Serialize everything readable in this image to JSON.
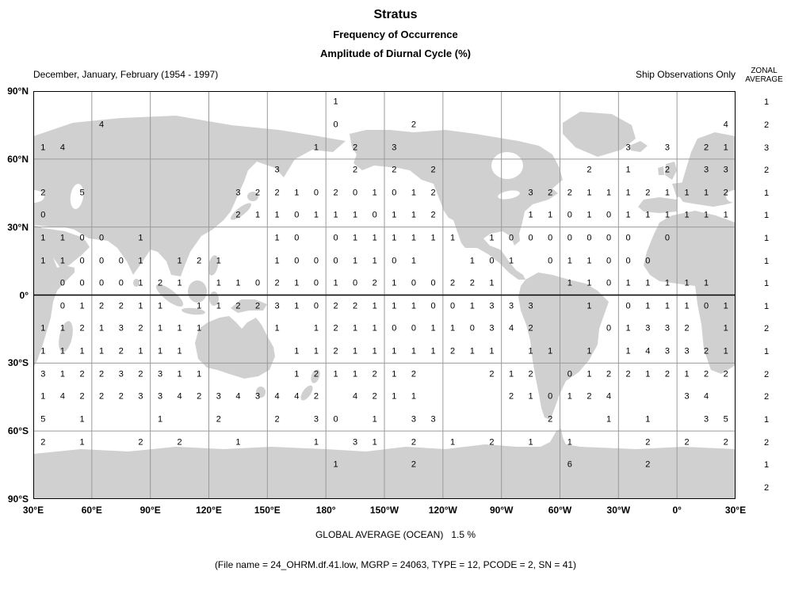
{
  "header": {
    "title": "Stratus",
    "subtitle1": "Frequency of Occurrence",
    "subtitle2": "Amplitude of Diurnal Cycle (%)"
  },
  "map_header": {
    "period": "December, January, February (1954 - 1997)",
    "source": "Ship Observations Only",
    "zonal1": "ZONAL",
    "zonal2": "AVERAGE"
  },
  "footer": {
    "global_average": "GLOBAL AVERAGE (OCEAN)   1.5 %",
    "file_info": "(File name = 24_OHRM.df.41.low, MGRP = 24063, TYPE = 12, PCODE = 2, SN = 41)"
  },
  "colors": {
    "land": "#d0d0d0",
    "grid_line": "#9a9a9a",
    "equator_line": "#000000",
    "border": "#000000",
    "text": "#000000",
    "background": "#ffffff"
  },
  "chart_data": {
    "type": "heatmap",
    "title": "Stratus — Frequency of Occurrence — Amplitude of Diurnal Cycle (%)",
    "subtitle": "December, January, February (1954 - 1997), Ship Observations Only",
    "units": "%",
    "projection": "equirectangular world map, longitudes 30E eastward around to 30E, latitudes 90N to 90S",
    "grid_resolution": "10 degree lat x 10 degree lon bands; rows start at 90N-80N, columns start at 30E-40E",
    "lat_labels": [
      "90°N",
      "60°N",
      "30°N",
      "0°",
      "30°S",
      "60°S",
      "90°S"
    ],
    "lon_labels": [
      "30°E",
      "60°E",
      "90°E",
      "120°E",
      "150°E",
      "180°",
      "150°W",
      "120°W",
      "90°W",
      "60°W",
      "30°W",
      "0°",
      "30°E"
    ],
    "grid_on": true,
    "global_average_ocean_percent": 1.5,
    "zonal_averages": [
      "1",
      "2",
      "3",
      "2",
      "1",
      "1",
      "1",
      "1",
      "1",
      "1",
      "2",
      "1",
      "2",
      "2",
      "1",
      "2",
      "1",
      "2"
    ],
    "grid_values": [
      {
        "15": "1"
      },
      {
        "3": "4",
        "15": "0",
        "19": "2",
        "35": "4"
      },
      {
        "0": "1",
        "1": "4",
        "14": "1",
        "16": "2",
        "18": "3",
        "30": "3",
        "32": "3",
        "34": "2",
        "35": "1"
      },
      {
        "12": "3",
        "16": "2",
        "18": "2",
        "20": "2",
        "28": "2",
        "30": "1",
        "32": "2",
        "34": "3",
        "35": "3"
      },
      {
        "0": "2",
        "2": "5",
        "10": "3",
        "11": "2",
        "12": "2",
        "13": "1",
        "14": "0",
        "15": "2",
        "16": "0",
        "17": "1",
        "18": "0",
        "19": "1",
        "20": "2",
        "25": "3",
        "26": "2",
        "27": "2",
        "28": "1",
        "29": "1",
        "30": "1",
        "31": "2",
        "32": "1",
        "33": "1",
        "34": "1",
        "35": "2"
      },
      {
        "0": "0",
        "10": "2",
        "11": "1",
        "12": "1",
        "13": "0",
        "14": "1",
        "15": "1",
        "16": "1",
        "17": "0",
        "18": "1",
        "19": "1",
        "20": "2",
        "25": "1",
        "26": "1",
        "27": "0",
        "28": "1",
        "29": "0",
        "30": "1",
        "31": "1",
        "32": "1",
        "33": "1",
        "34": "1",
        "35": "1"
      },
      {
        "0": "1",
        "1": "1",
        "2": "0",
        "3": "0",
        "5": "1",
        "12": "1",
        "13": "0",
        "15": "0",
        "16": "1",
        "17": "1",
        "18": "1",
        "19": "1",
        "20": "1",
        "21": "1",
        "23": "1",
        "24": "0",
        "25": "0",
        "26": "0",
        "27": "0",
        "28": "0",
        "29": "0",
        "30": "0",
        "32": "0"
      },
      {
        "0": "1",
        "1": "1",
        "2": "0",
        "3": "0",
        "4": "0",
        "5": "1",
        "7": "1",
        "8": "2",
        "9": "1",
        "12": "1",
        "13": "0",
        "14": "0",
        "15": "0",
        "16": "1",
        "17": "1",
        "18": "0",
        "19": "1",
        "22": "1",
        "23": "0",
        "24": "1",
        "26": "0",
        "27": "1",
        "28": "1",
        "29": "0",
        "30": "0",
        "31": "0"
      },
      {
        "1": "0",
        "2": "0",
        "3": "0",
        "4": "0",
        "5": "1",
        "6": "2",
        "7": "1",
        "9": "1",
        "10": "1",
        "11": "0",
        "12": "2",
        "13": "1",
        "14": "0",
        "15": "1",
        "16": "0",
        "17": "2",
        "18": "1",
        "19": "0",
        "20": "0",
        "21": "2",
        "22": "2",
        "23": "1",
        "27": "1",
        "28": "1",
        "29": "0",
        "30": "1",
        "31": "1",
        "32": "1",
        "33": "1",
        "34": "1"
      },
      {
        "1": "0",
        "2": "1",
        "3": "2",
        "4": "2",
        "5": "1",
        "6": "1",
        "8": "1",
        "9": "1",
        "10": "2",
        "11": "2",
        "12": "3",
        "13": "1",
        "14": "0",
        "15": "2",
        "16": "2",
        "17": "1",
        "18": "1",
        "19": "1",
        "20": "0",
        "21": "0",
        "22": "1",
        "23": "3",
        "24": "3",
        "25": "3",
        "28": "1",
        "30": "0",
        "31": "1",
        "32": "1",
        "33": "1",
        "34": "0",
        "35": "1"
      },
      {
        "0": "1",
        "1": "1",
        "2": "2",
        "3": "1",
        "4": "3",
        "5": "2",
        "6": "1",
        "7": "1",
        "8": "1",
        "12": "1",
        "14": "1",
        "15": "2",
        "16": "1",
        "17": "1",
        "18": "0",
        "19": "0",
        "20": "1",
        "21": "1",
        "22": "0",
        "23": "3",
        "24": "4",
        "25": "2",
        "29": "0",
        "30": "1",
        "31": "3",
        "32": "3",
        "33": "2",
        "35": "1"
      },
      {
        "0": "1",
        "1": "1",
        "2": "1",
        "3": "1",
        "4": "2",
        "5": "1",
        "6": "1",
        "7": "1",
        "13": "1",
        "14": "1",
        "15": "2",
        "16": "1",
        "17": "1",
        "18": "1",
        "19": "1",
        "20": "1",
        "21": "2",
        "22": "1",
        "23": "1",
        "25": "1",
        "26": "1",
        "28": "1",
        "30": "1",
        "31": "4",
        "32": "3",
        "33": "3",
        "34": "2",
        "35": "1"
      },
      {
        "0": "3",
        "1": "1",
        "2": "2",
        "3": "2",
        "4": "3",
        "5": "2",
        "6": "3",
        "7": "1",
        "8": "1",
        "13": "1",
        "14": "2",
        "15": "1",
        "16": "1",
        "17": "2",
        "18": "1",
        "19": "2",
        "23": "2",
        "24": "1",
        "25": "2",
        "27": "0",
        "28": "1",
        "29": "2",
        "30": "2",
        "31": "1",
        "32": "2",
        "33": "1",
        "34": "2",
        "35": "2"
      },
      {
        "0": "1",
        "1": "4",
        "2": "2",
        "3": "2",
        "4": "2",
        "5": "3",
        "6": "3",
        "7": "4",
        "8": "2",
        "9": "3",
        "10": "4",
        "11": "3",
        "12": "4",
        "13": "4",
        "14": "2",
        "16": "4",
        "17": "2",
        "18": "1",
        "19": "1",
        "24": "2",
        "25": "1",
        "26": "0",
        "27": "1",
        "28": "2",
        "29": "4",
        "33": "3",
        "34": "4"
      },
      {
        "0": "5",
        "2": "1",
        "6": "1",
        "9": "2",
        "12": "2",
        "14": "3",
        "15": "0",
        "17": "1",
        "19": "3",
        "20": "3",
        "26": "2",
        "29": "1",
        "31": "1",
        "34": "3",
        "35": "5"
      },
      {
        "0": "2",
        "2": "1",
        "5": "2",
        "7": "2",
        "10": "1",
        "14": "1",
        "16": "3",
        "17": "1",
        "19": "2",
        "21": "1",
        "23": "2",
        "25": "1",
        "27": "1",
        "31": "2",
        "33": "2",
        "35": "2"
      },
      {
        "15": "1",
        "19": "2",
        "27": "6",
        "31": "2"
      },
      {}
    ]
  }
}
